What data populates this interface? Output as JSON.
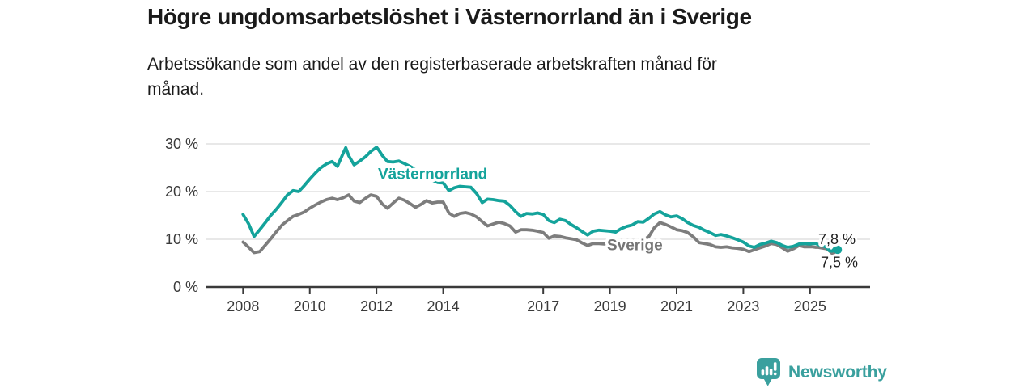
{
  "colors": {
    "vasternorrland_line": "#14a39b",
    "sverige_line": "#7d7d7d",
    "sverige_label": "#757575",
    "grid": "#d9d9d9",
    "axis": "#3a3a3a",
    "tick_text": "#3a3a3a",
    "text": "#1a1a1a",
    "end_label_text": "#1e1e1e",
    "brand": "#3aa09e"
  },
  "footer": {
    "brand": "Newsworthy",
    "logo_icon": "bar-chart-speech-bubble-icon"
  },
  "chart_data": {
    "type": "line",
    "title": "Högre ungdomsarbetslöshet i Västernorrland än i Sverige",
    "subtitle": "Arbetssökande som andel av den registerbaserade arbetskraften månad för månad.",
    "xlabel": "",
    "ylabel": "",
    "grid": "horizontal",
    "legend_position": "inline-labels-on-lines",
    "xlim": [
      2006.9,
      2026.8
    ],
    "ylim": [
      0,
      32.2
    ],
    "x_tick_values": [
      2008,
      2010,
      2012,
      2014,
      2017,
      2019,
      2021,
      2023,
      2025
    ],
    "x_tick_labels": [
      "2008",
      "2010",
      "2012",
      "2014",
      "2017",
      "2019",
      "2021",
      "2023",
      "2025"
    ],
    "y_tick_values": [
      0,
      10,
      20,
      30
    ],
    "y_tick_labels": [
      "0 %",
      "10 %",
      "20 %",
      "30 %"
    ],
    "series": [
      {
        "name": "Västernorrland",
        "label": "Västernorrland",
        "color": "#14a39b",
        "end_label": "7,8 %",
        "end_value": 7.8,
        "end_dot": true,
        "points": [
          [
            2008,
            15.2
          ],
          [
            2008.17,
            13.2
          ],
          [
            2008.33,
            10.6
          ],
          [
            2008.5,
            12
          ],
          [
            2008.67,
            13.5
          ],
          [
            2008.83,
            15
          ],
          [
            2009,
            16.3
          ],
          [
            2009.17,
            17.8
          ],
          [
            2009.33,
            19.3
          ],
          [
            2009.5,
            20.2
          ],
          [
            2009.67,
            20
          ],
          [
            2009.83,
            21.2
          ],
          [
            2010,
            22.6
          ],
          [
            2010.17,
            23.9
          ],
          [
            2010.33,
            25
          ],
          [
            2010.5,
            25.8
          ],
          [
            2010.67,
            26.3
          ],
          [
            2010.83,
            25.3
          ],
          [
            2011,
            28
          ],
          [
            2011.08,
            29.2
          ],
          [
            2011.17,
            27.5
          ],
          [
            2011.33,
            25.6
          ],
          [
            2011.5,
            26.4
          ],
          [
            2011.67,
            27.3
          ],
          [
            2011.83,
            28.4
          ],
          [
            2012,
            29.3
          ],
          [
            2012.08,
            28.6
          ],
          [
            2012.17,
            27.6
          ],
          [
            2012.33,
            26.3
          ],
          [
            2012.5,
            26.2
          ],
          [
            2012.67,
            26.4
          ],
          [
            2012.83,
            25.9
          ],
          [
            2013,
            25.3
          ],
          [
            2013.17,
            24.6
          ],
          [
            2013.33,
            23.8
          ],
          [
            2013.5,
            23.1
          ],
          [
            2013.67,
            22.4
          ],
          [
            2013.83,
            21.9
          ],
          [
            2014,
            21.8
          ],
          [
            2014.17,
            20.2
          ],
          [
            2014.33,
            20.8
          ],
          [
            2014.5,
            21.1
          ],
          [
            2014.67,
            21
          ],
          [
            2014.83,
            20.9
          ],
          [
            2015,
            19.6
          ],
          [
            2015.17,
            17.7
          ],
          [
            2015.33,
            18.4
          ],
          [
            2015.5,
            18.3
          ],
          [
            2015.67,
            18.1
          ],
          [
            2015.83,
            18
          ],
          [
            2016,
            17.1
          ],
          [
            2016.17,
            15.8
          ],
          [
            2016.33,
            14.8
          ],
          [
            2016.5,
            15.4
          ],
          [
            2016.67,
            15.3
          ],
          [
            2016.83,
            15.5
          ],
          [
            2017,
            15.2
          ],
          [
            2017.17,
            13.9
          ],
          [
            2017.33,
            13.5
          ],
          [
            2017.5,
            14.2
          ],
          [
            2017.67,
            13.9
          ],
          [
            2017.83,
            13.1
          ],
          [
            2018,
            12.4
          ],
          [
            2018.17,
            11.6
          ],
          [
            2018.33,
            10.9
          ],
          [
            2018.5,
            11.7
          ],
          [
            2018.67,
            11.9
          ],
          [
            2018.83,
            11.8
          ],
          [
            2019,
            11.7
          ],
          [
            2019.17,
            11.5
          ],
          [
            2019.33,
            12.2
          ],
          [
            2019.5,
            12.7
          ],
          [
            2019.67,
            13
          ],
          [
            2019.83,
            13.7
          ],
          [
            2020,
            13.6
          ],
          [
            2020.17,
            14.4
          ],
          [
            2020.33,
            15.3
          ],
          [
            2020.5,
            15.8
          ],
          [
            2020.67,
            15.1
          ],
          [
            2020.83,
            14.7
          ],
          [
            2021,
            14.9
          ],
          [
            2021.17,
            14.3
          ],
          [
            2021.33,
            13.5
          ],
          [
            2021.5,
            12.9
          ],
          [
            2021.67,
            12.5
          ],
          [
            2021.83,
            11.9
          ],
          [
            2022,
            11.4
          ],
          [
            2022.17,
            10.8
          ],
          [
            2022.33,
            11
          ],
          [
            2022.5,
            10.7
          ],
          [
            2022.67,
            10.3
          ],
          [
            2022.83,
            9.9
          ],
          [
            2023,
            9.4
          ],
          [
            2023.17,
            8.6
          ],
          [
            2023.33,
            8.3
          ],
          [
            2023.5,
            8.9
          ],
          [
            2023.67,
            9.2
          ],
          [
            2023.83,
            9.6
          ],
          [
            2024,
            9.3
          ],
          [
            2024.17,
            8.7
          ],
          [
            2024.33,
            8.3
          ],
          [
            2024.5,
            8.5
          ],
          [
            2024.67,
            9
          ],
          [
            2024.83,
            9.1
          ],
          [
            2025,
            9
          ],
          [
            2025.08,
            9.1
          ],
          [
            2025.17,
            9.1
          ],
          [
            2025.25,
            8.9
          ],
          [
            2025.33,
            8.7
          ],
          [
            2025.42,
            8.5
          ],
          [
            2025.5,
            8.3
          ],
          [
            2025.58,
            7.6
          ],
          [
            2025.67,
            7.5
          ],
          [
            2025.75,
            8.2
          ],
          [
            2025.83,
            7.8
          ]
        ]
      },
      {
        "name": "Sverige",
        "label": "Sverige",
        "color": "#7d7d7d",
        "end_label": "7,5 %",
        "end_value": 7.5,
        "end_dot": false,
        "points": [
          [
            2008,
            9.4
          ],
          [
            2008.17,
            8.3
          ],
          [
            2008.33,
            7.2
          ],
          [
            2008.5,
            7.4
          ],
          [
            2008.67,
            8.8
          ],
          [
            2008.83,
            10.1
          ],
          [
            2009,
            11.6
          ],
          [
            2009.17,
            13
          ],
          [
            2009.33,
            13.9
          ],
          [
            2009.5,
            14.8
          ],
          [
            2009.67,
            15.2
          ],
          [
            2009.83,
            15.7
          ],
          [
            2010,
            16.5
          ],
          [
            2010.17,
            17.2
          ],
          [
            2010.33,
            17.8
          ],
          [
            2010.5,
            18.3
          ],
          [
            2010.67,
            18.6
          ],
          [
            2010.83,
            18.3
          ],
          [
            2011,
            18.7
          ],
          [
            2011.17,
            19.3
          ],
          [
            2011.33,
            18
          ],
          [
            2011.5,
            17.7
          ],
          [
            2011.67,
            18.6
          ],
          [
            2011.83,
            19.3
          ],
          [
            2012,
            19
          ],
          [
            2012.17,
            17.4
          ],
          [
            2012.33,
            16.5
          ],
          [
            2012.5,
            17.6
          ],
          [
            2012.67,
            18.6
          ],
          [
            2012.83,
            18.2
          ],
          [
            2013,
            17.5
          ],
          [
            2013.17,
            16.7
          ],
          [
            2013.33,
            17.3
          ],
          [
            2013.5,
            18.1
          ],
          [
            2013.67,
            17.6
          ],
          [
            2013.83,
            17.8
          ],
          [
            2014,
            17.8
          ],
          [
            2014.17,
            15.5
          ],
          [
            2014.33,
            14.8
          ],
          [
            2014.5,
            15.4
          ],
          [
            2014.67,
            15.6
          ],
          [
            2014.83,
            15.3
          ],
          [
            2015,
            14.7
          ],
          [
            2015.17,
            13.7
          ],
          [
            2015.33,
            12.8
          ],
          [
            2015.5,
            13.2
          ],
          [
            2015.67,
            13.6
          ],
          [
            2015.83,
            13.3
          ],
          [
            2016,
            12.8
          ],
          [
            2016.17,
            11.5
          ],
          [
            2016.33,
            12
          ],
          [
            2016.5,
            12
          ],
          [
            2016.67,
            11.9
          ],
          [
            2016.83,
            11.7
          ],
          [
            2017,
            11.4
          ],
          [
            2017.17,
            10.2
          ],
          [
            2017.33,
            10.7
          ],
          [
            2017.5,
            10.6
          ],
          [
            2017.67,
            10.3
          ],
          [
            2017.83,
            10.1
          ],
          [
            2018,
            9.9
          ],
          [
            2018.17,
            9.2
          ],
          [
            2018.33,
            8.7
          ],
          [
            2018.5,
            9.1
          ],
          [
            2018.67,
            9.1
          ],
          [
            2018.83,
            9
          ],
          [
            2019,
            9
          ],
          [
            2019.17,
            8.8
          ],
          [
            2019.33,
            8.9
          ],
          [
            2019.5,
            9
          ],
          [
            2019.67,
            9.1
          ],
          [
            2019.83,
            9.3
          ],
          [
            2020,
            9.8
          ],
          [
            2020.17,
            10.6
          ],
          [
            2020.33,
            12.4
          ],
          [
            2020.5,
            13.5
          ],
          [
            2020.67,
            13.1
          ],
          [
            2020.83,
            12.6
          ],
          [
            2021,
            12
          ],
          [
            2021.17,
            11.8
          ],
          [
            2021.33,
            11.4
          ],
          [
            2021.5,
            10.5
          ],
          [
            2021.67,
            9.3
          ],
          [
            2021.83,
            9.1
          ],
          [
            2022,
            8.9
          ],
          [
            2022.17,
            8.4
          ],
          [
            2022.33,
            8.3
          ],
          [
            2022.5,
            8.4
          ],
          [
            2022.67,
            8.2
          ],
          [
            2022.83,
            8.1
          ],
          [
            2023,
            7.9
          ],
          [
            2023.17,
            7.4
          ],
          [
            2023.33,
            7.8
          ],
          [
            2023.5,
            8.2
          ],
          [
            2023.67,
            8.6
          ],
          [
            2023.83,
            9.1
          ],
          [
            2024,
            8.9
          ],
          [
            2024.17,
            8.2
          ],
          [
            2024.33,
            7.5
          ],
          [
            2024.5,
            8
          ],
          [
            2024.67,
            8.7
          ],
          [
            2024.83,
            8.4
          ],
          [
            2025,
            8.4
          ],
          [
            2025.08,
            8.4
          ],
          [
            2025.17,
            8.3
          ],
          [
            2025.25,
            8.3
          ],
          [
            2025.33,
            8.2
          ],
          [
            2025.42,
            8.1
          ],
          [
            2025.5,
            8
          ],
          [
            2025.58,
            7.6
          ],
          [
            2025.67,
            7
          ],
          [
            2025.75,
            7.3
          ],
          [
            2025.83,
            7.5
          ]
        ]
      }
    ]
  }
}
